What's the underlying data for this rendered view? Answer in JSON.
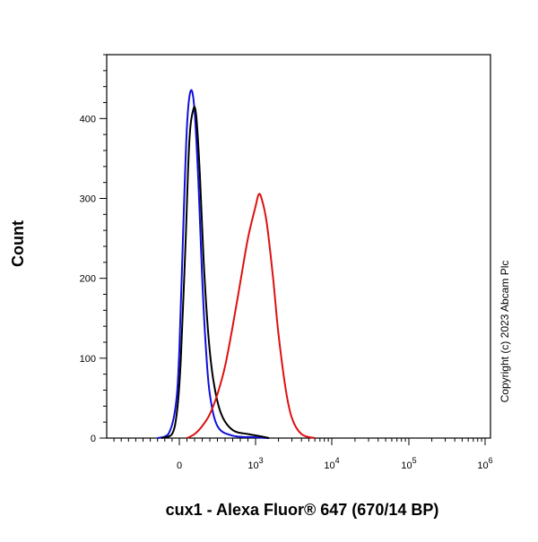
{
  "chart_data": {
    "type": "line",
    "title": "",
    "xlabel": "cux1 - Alexa Fluor® 647 (670/14 BP)",
    "ylabel": "Count",
    "x_scale": "biexponential",
    "ylim": [
      0,
      480
    ],
    "y_ticks": [
      0,
      100,
      200,
      300,
      400
    ],
    "x_ticks": [
      {
        "base": "0",
        "exp": "",
        "value": 0
      },
      {
        "base": "10",
        "exp": "3",
        "value": 1000
      },
      {
        "base": "10",
        "exp": "4",
        "value": 10000
      },
      {
        "base": "10",
        "exp": "5",
        "value": 100000
      },
      {
        "base": "10",
        "exp": "6",
        "value": 1000000
      }
    ],
    "series": [
      {
        "color": "#1010d8",
        "x": [
          -300,
          -150,
          -50,
          0,
          50,
          100,
          150,
          200,
          250,
          300,
          350,
          400,
          500,
          700,
          1000,
          1500
        ],
        "y": [
          0,
          5,
          40,
          110,
          260,
          390,
          435,
          410,
          320,
          200,
          110,
          55,
          15,
          3,
          1,
          0
        ]
      },
      {
        "color": "#000000",
        "x": [
          -250,
          -100,
          -30,
          20,
          80,
          130,
          180,
          220,
          270,
          320,
          380,
          450,
          550,
          700,
          900,
          1200,
          1500
        ],
        "y": [
          0,
          5,
          35,
          100,
          240,
          370,
          410,
          405,
          330,
          220,
          130,
          70,
          30,
          10,
          5,
          2,
          0
        ]
      },
      {
        "color": "#dd1111",
        "x": [
          100,
          200,
          300,
          400,
          500,
          600,
          700,
          800,
          900,
          1000,
          1100,
          1200,
          1400,
          1700,
          2000,
          2500,
          3000,
          4000,
          6000
        ],
        "y": [
          0,
          5,
          15,
          30,
          55,
          90,
          140,
          195,
          250,
          290,
          305,
          300,
          270,
          200,
          130,
          60,
          25,
          5,
          0
        ]
      }
    ],
    "annotations": [
      "Copyright (c) 2023 Abcam Plc"
    ]
  }
}
